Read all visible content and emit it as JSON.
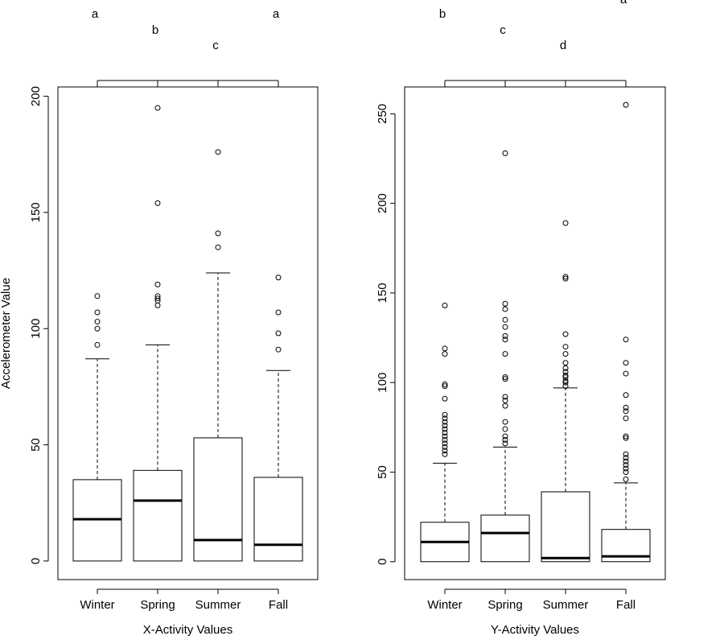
{
  "figure": {
    "ylabel": "Accelerometer Value"
  },
  "chart_data": [
    {
      "type": "box",
      "xlabel": "X-Activity Values",
      "ylabel": "Accelerometer Value",
      "categories": [
        "Winter",
        "Spring",
        "Summer",
        "Fall"
      ],
      "letters": [
        "a",
        "b",
        "c",
        "a"
      ],
      "ylim": [
        -8,
        204
      ],
      "yticks": [
        0,
        50,
        100,
        150,
        200
      ],
      "boxes": [
        {
          "min": 0,
          "q1": 0,
          "median": 18,
          "q3": 35,
          "max": 87,
          "outliers": [
            93,
            100,
            103,
            107,
            114
          ]
        },
        {
          "min": 0,
          "q1": 0,
          "median": 26,
          "q3": 39,
          "max": 93,
          "outliers": [
            110,
            112,
            113,
            114,
            119,
            154,
            195
          ]
        },
        {
          "min": 0,
          "q1": 0,
          "median": 9,
          "q3": 53,
          "max": 124,
          "outliers": [
            135,
            141,
            176
          ]
        },
        {
          "min": 0,
          "q1": 0,
          "median": 7,
          "q3": 36,
          "max": 82,
          "outliers": [
            91,
            98,
            107,
            122
          ]
        }
      ]
    },
    {
      "type": "box",
      "xlabel": "Y-Activity Values",
      "ylabel": "",
      "categories": [
        "Winter",
        "Spring",
        "Summer",
        "Fall"
      ],
      "letters": [
        "b",
        "c",
        "d",
        "a"
      ],
      "ylim": [
        -10,
        265
      ],
      "yticks": [
        0,
        50,
        100,
        150,
        200,
        250
      ],
      "boxes": [
        {
          "min": 0,
          "q1": 0,
          "median": 11,
          "q3": 22,
          "max": 55,
          "outliers": [
            60,
            62,
            64,
            66,
            68,
            70,
            72,
            74,
            76,
            78,
            80,
            82,
            91,
            98,
            99,
            116,
            119,
            143
          ]
        },
        {
          "min": 0,
          "q1": 0,
          "median": 16,
          "q3": 26,
          "max": 64,
          "outliers": [
            66,
            68,
            70,
            74,
            78,
            87,
            90,
            92,
            102,
            103,
            116,
            124,
            126,
            131,
            135,
            141,
            144,
            228
          ]
        },
        {
          "min": 0,
          "q1": 0,
          "median": 2,
          "q3": 39,
          "max": 97,
          "outliers": [
            98,
            100,
            101,
            103,
            104,
            106,
            108,
            111,
            116,
            120,
            127,
            158,
            159,
            189
          ]
        },
        {
          "min": 0,
          "q1": 0,
          "median": 3,
          "q3": 18,
          "max": 44,
          "outliers": [
            46,
            50,
            52,
            54,
            56,
            58,
            60,
            69,
            70,
            80,
            84,
            86,
            93,
            105,
            111,
            124,
            255
          ]
        }
      ]
    }
  ]
}
